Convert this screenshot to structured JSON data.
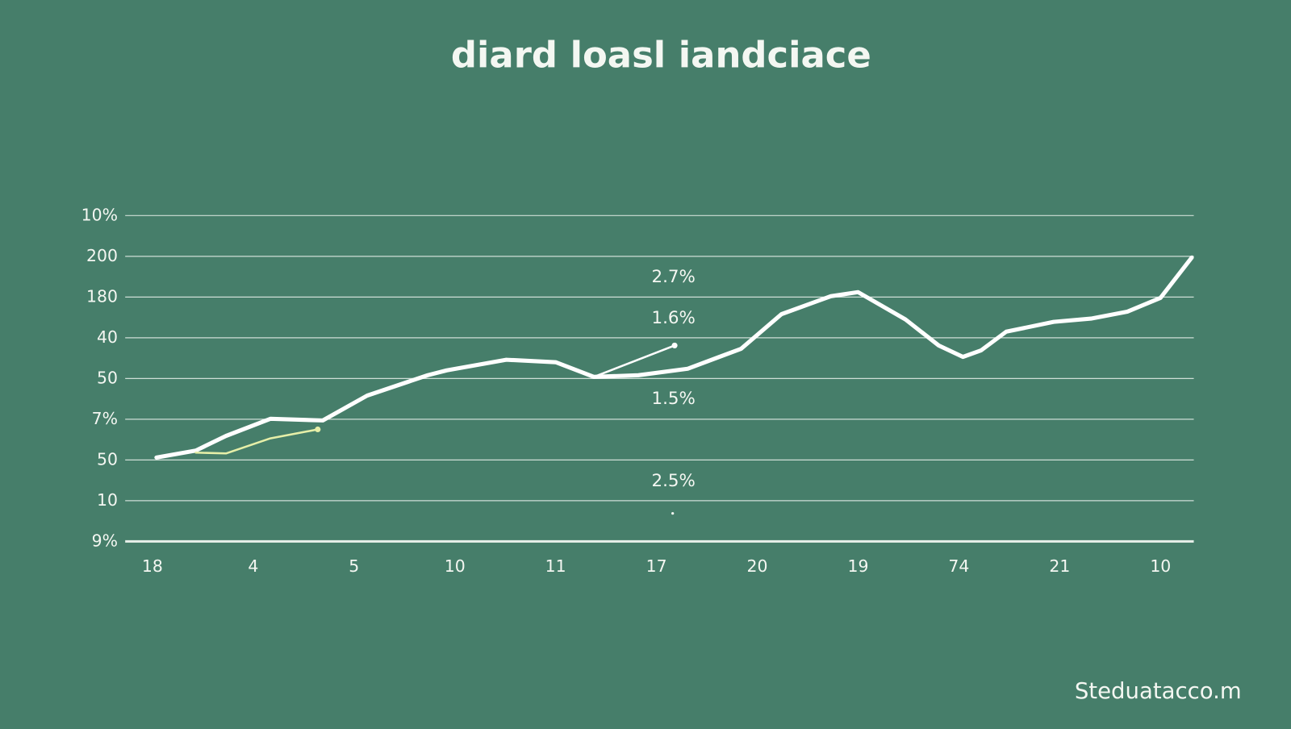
{
  "chart_data": {
    "type": "line",
    "title": "diard  loasl iandciace",
    "footer": "Steduatacco.m",
    "annotations": [
      "2.7%",
      "1.6%",
      "1.5%",
      "2.5%"
    ],
    "categories": [
      "18",
      "4",
      "5",
      "10",
      "11",
      "17",
      "20",
      "19",
      "74",
      "21",
      "10"
    ],
    "xlim": [
      -0.27,
      10.33
    ],
    "ylim": [
      0,
      8
    ],
    "yticks": [
      {
        "value": 0,
        "label": "9%"
      },
      {
        "value": 1,
        "label": "10"
      },
      {
        "value": 2,
        "label": "50"
      },
      {
        "value": 3,
        "label": "7%"
      },
      {
        "value": 4,
        "label": "50"
      },
      {
        "value": 5,
        "label": "40"
      },
      {
        "value": 6,
        "label": "180"
      },
      {
        "value": 7,
        "label": "200"
      },
      {
        "value": 8,
        "label": "10%"
      }
    ],
    "grid": true,
    "series": [
      {
        "color": "#ffffff",
        "x": [
          0.04,
          0.43,
          0.73,
          1.17,
          1.69,
          2.13,
          2.73,
          2.92,
          3.51,
          4.0,
          4.38,
          4.82,
          5.31,
          5.84,
          6.24,
          6.73,
          7.0,
          7.47,
          7.8,
          8.04,
          8.22,
          8.47,
          8.94,
          9.31,
          9.67,
          10.0,
          10.31
        ],
        "values": [
          2.06,
          2.23,
          2.59,
          3.01,
          2.97,
          3.58,
          4.08,
          4.2,
          4.46,
          4.4,
          4.04,
          4.08,
          4.24,
          4.73,
          5.58,
          6.02,
          6.12,
          5.45,
          4.81,
          4.53,
          4.69,
          5.15,
          5.39,
          5.47,
          5.64,
          5.98,
          6.97
        ]
      },
      {
        "color": "#e6efa8",
        "x": [
          0.43,
          0.73,
          1.17,
          1.64
        ],
        "values": [
          2.18,
          2.16,
          2.53,
          2.75
        ]
      },
      {
        "color": "#ffffff",
        "x": [
          4.38,
          5.18
        ],
        "values": [
          4.04,
          4.81
        ]
      }
    ]
  }
}
